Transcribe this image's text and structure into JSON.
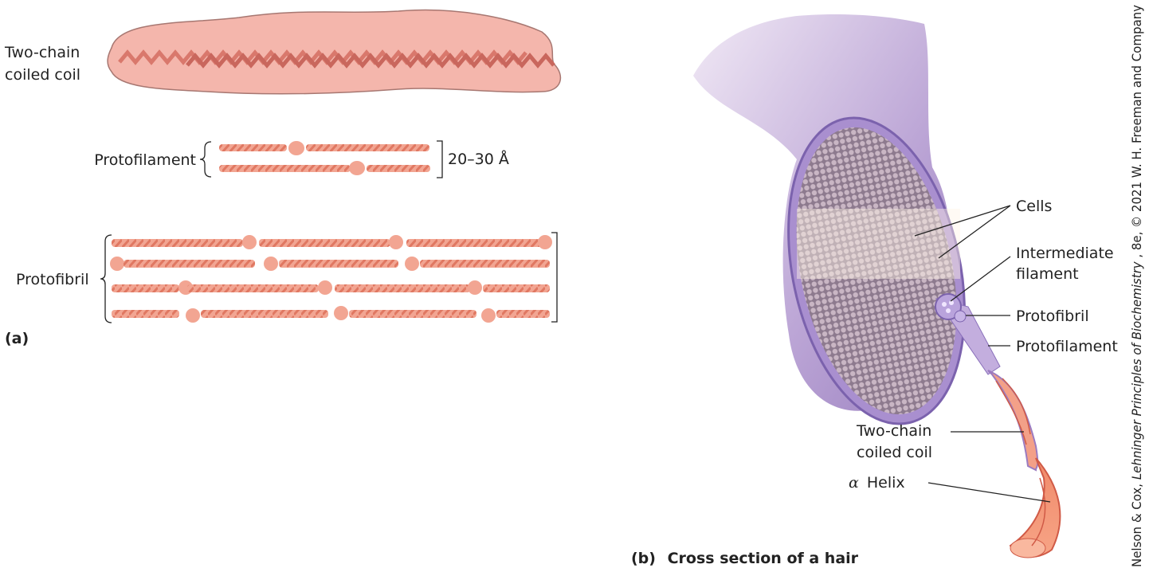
{
  "panel_a": {
    "coiled_coil_label": [
      "Two-chain",
      "coiled coil"
    ],
    "protofilament_label": "Protofilament",
    "width_label": "20–30 Å",
    "protofibril_label": "Protofibril",
    "panel_label": "(a)"
  },
  "panel_b": {
    "labels": {
      "cells": "Cells",
      "intermediate_filament": [
        "Intermediate",
        "filament"
      ],
      "protofibril": "Protofibril",
      "protofilament": "Protofilament",
      "coiled_coil": [
        "Two-chain",
        "coiled coil"
      ],
      "alpha_helix": [
        "α",
        "Helix"
      ]
    },
    "panel_label": "(b)",
    "caption": "Cross section of a hair"
  },
  "credit": [
    "Nelson & Cox, ",
    "Lehninger Principles of Biochemistry",
    ", 8e, © 2021 W. H. Freeman and Company"
  ]
}
